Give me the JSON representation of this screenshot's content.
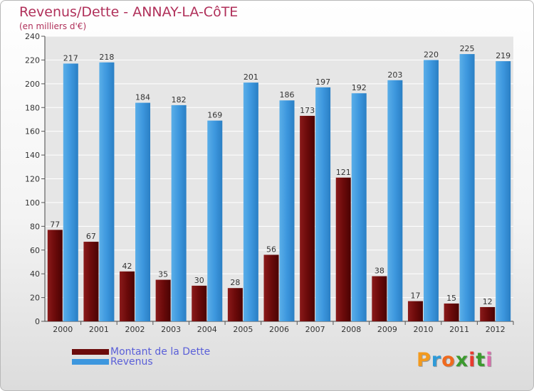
{
  "title": "Revenus/Dette - ANNAY-LA-CôTE",
  "subtitle": "(en milliers d'€)",
  "colors": {
    "dette": "#6b0a0a",
    "revenus": "#3d97de",
    "title": "#b0305a",
    "legend_text": "#5a5fd8",
    "grid": "#ffffff",
    "plot_bg": "#e6e6e6"
  },
  "legend": {
    "position": "bottom-left",
    "items": [
      {
        "label": "Montant de la Dette",
        "color": "#6b0a0a"
      },
      {
        "label": "Revenus",
        "color": "#3d97de"
      }
    ]
  },
  "logo": {
    "letters": [
      "P",
      "r",
      "o",
      "x",
      "i",
      "t",
      "i"
    ],
    "colors": [
      "#f39a1e",
      "#2e9ad8",
      "#f06a1e",
      "#3c9a2e",
      "#e83a2e",
      "#3c9a2e",
      "#e06ab0"
    ]
  },
  "chart_data": {
    "type": "bar",
    "title": "Revenus/Dette - ANNAY-LA-CôTE",
    "subtitle": "(en milliers d'€)",
    "categories": [
      "2000",
      "2001",
      "2002",
      "2003",
      "2004",
      "2005",
      "2006",
      "2007",
      "2008",
      "2009",
      "2010",
      "2011",
      "2012"
    ],
    "series": [
      {
        "name": "Montant de la Dette",
        "color": "#6b0a0a",
        "values": [
          77,
          67,
          42,
          35,
          30,
          28,
          56,
          173,
          121,
          38,
          17,
          15,
          12
        ]
      },
      {
        "name": "Revenus",
        "color": "#3d97de",
        "values": [
          217,
          218,
          184,
          182,
          169,
          201,
          186,
          197,
          192,
          203,
          220,
          225,
          219
        ]
      }
    ],
    "yticks": [
      "0",
      "20",
      "40",
      "60",
      "80",
      "100",
      "120",
      "140",
      "160",
      "180",
      "200",
      "220",
      "240"
    ],
    "ylim": [
      0,
      240
    ],
    "grid": true,
    "data_labels": true
  }
}
